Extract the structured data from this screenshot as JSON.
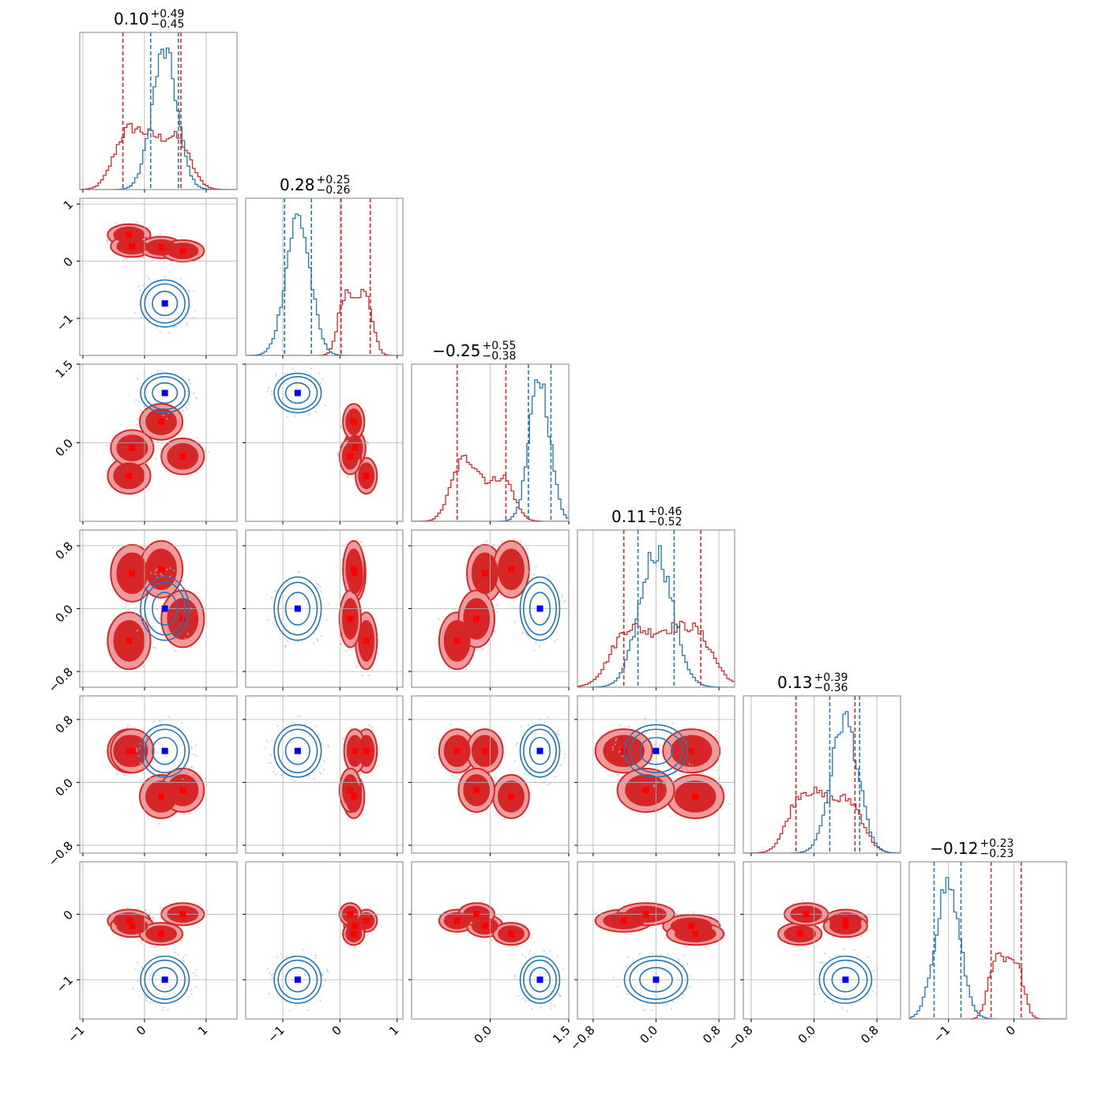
{
  "chart_data": {
    "type": "corner",
    "colors": {
      "red": "#d62728",
      "blue": "#1f77b4",
      "truth": "#0000ff",
      "truth_red": "#ff0000",
      "grid": "#b0b0b0",
      "frame": "#808080"
    },
    "parameters": [
      {
        "title_center": "0.10",
        "title_plus": "+0.49",
        "title_minus": "−0.45",
        "range": [
          -1.05,
          1.5
        ],
        "ticks": [
          {
            "v": -1,
            "label": "−1"
          },
          {
            "v": 0,
            "label": "0"
          },
          {
            "v": 1,
            "label": "1"
          }
        ],
        "red_quantiles": [
          -0.35,
          0.1,
          0.59
        ],
        "blue_quantiles": [
          0.1,
          0.55
        ],
        "blue_truth": 0.33,
        "red_modes": [
          -0.25,
          -0.2,
          0.27,
          0.62
        ]
      },
      {
        "title_center": "0.28",
        "title_plus": "+0.25",
        "title_minus": "−0.26",
        "range": [
          -1.65,
          1.1
        ],
        "ticks": [
          {
            "v": -1,
            "label": "−1"
          },
          {
            "v": 0,
            "label": "0"
          },
          {
            "v": 1,
            "label": "1"
          }
        ],
        "red_quantiles": [
          0.02,
          0.28,
          0.53
        ],
        "blue_quantiles": [
          -0.97,
          -0.5
        ],
        "blue_truth": -0.74,
        "red_modes": [
          0.46,
          0.26,
          0.24,
          0.18
        ]
      },
      {
        "title_center": "−0.25",
        "title_plus": "+0.55",
        "title_minus": "−0.38",
        "range": [
          -1.5,
          1.5
        ],
        "ticks": [
          {
            "v": 0,
            "label": "0.0"
          },
          {
            "v": 1.5,
            "label": "1.5"
          }
        ],
        "red_quantiles": [
          -0.63,
          -0.25,
          0.3
        ],
        "blue_quantiles": [
          0.73,
          1.16
        ],
        "blue_truth": 0.95,
        "red_modes": [
          -0.63,
          -0.1,
          0.4,
          -0.26
        ]
      },
      {
        "title_center": "0.11",
        "title_plus": "+0.46",
        "title_minus": "−0.52",
        "range": [
          -1.0,
          1.0
        ],
        "ticks": [
          {
            "v": -0.8,
            "label": "−0.8"
          },
          {
            "v": 0,
            "label": "0.0"
          },
          {
            "v": 0.8,
            "label": "0.8"
          }
        ],
        "red_quantiles": [
          -0.41,
          0.11,
          0.57
        ],
        "blue_quantiles": [
          -0.23,
          0.23
        ],
        "blue_truth": 0.0,
        "red_modes": [
          -0.41,
          0.45,
          0.5,
          -0.13
        ]
      },
      {
        "title_center": "0.13",
        "title_plus": "+0.39",
        "title_minus": "−0.36",
        "range": [
          -0.9,
          1.1
        ],
        "ticks": [
          {
            "v": -0.8,
            "label": "−0.8"
          },
          {
            "v": 0,
            "label": "0.0"
          },
          {
            "v": 0.8,
            "label": "0.8"
          }
        ],
        "red_quantiles": [
          -0.23,
          0.13,
          0.52
        ],
        "blue_quantiles": [
          0.2,
          0.58
        ],
        "blue_truth": 0.4,
        "red_modes": [
          0.4,
          0.4,
          -0.18,
          -0.1
        ]
      },
      {
        "title_center": "−0.12",
        "title_plus": "+0.23",
        "title_minus": "−0.23",
        "range": [
          -1.6,
          0.8
        ],
        "ticks": [
          {
            "v": -1,
            "label": "−1"
          },
          {
            "v": 0,
            "label": "0"
          }
        ],
        "red_quantiles": [
          -0.35,
          -0.12,
          0.11
        ],
        "blue_quantiles": [
          -1.22,
          -0.81
        ],
        "blue_truth": -1.0,
        "red_modes": [
          -0.1,
          -0.18,
          -0.3,
          0.0
        ]
      }
    ]
  }
}
